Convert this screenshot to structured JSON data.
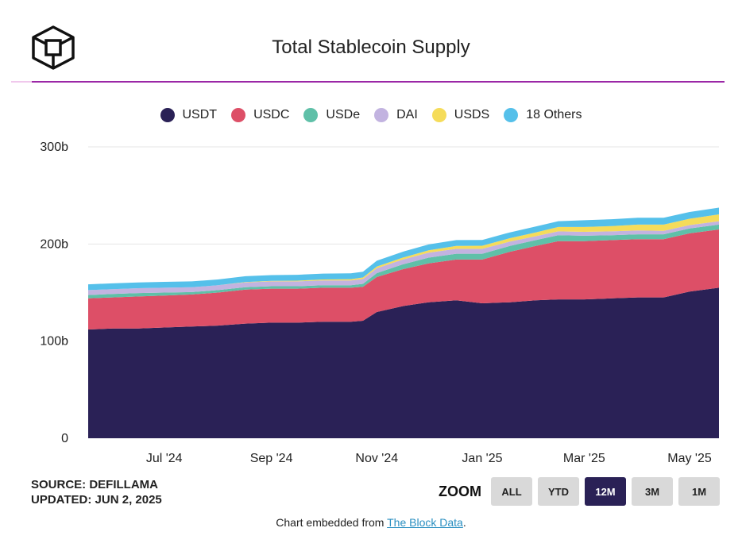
{
  "title": "Total Stablecoin Supply",
  "legend": [
    {
      "label": "USDT",
      "color": "#2a2156"
    },
    {
      "label": "USDC",
      "color": "#dd4f67"
    },
    {
      "label": "USDe",
      "color": "#5fc0a8"
    },
    {
      "label": "DAI",
      "color": "#c2b3e0"
    },
    {
      "label": "USDS",
      "color": "#f5dc5a"
    },
    {
      "label": "18 Others",
      "color": "#55c0ea"
    }
  ],
  "source": {
    "line1": "SOURCE: DEFILLAMA",
    "line2": "UPDATED: JUN 2, 2025"
  },
  "zoom": {
    "label": "ZOOM",
    "buttons": [
      "ALL",
      "YTD",
      "12M",
      "3M",
      "1M"
    ],
    "active": "12M"
  },
  "footer": {
    "prefix": "Chart embedded from ",
    "link": "The Block Data",
    "suffix": "."
  },
  "chart_data": {
    "type": "area",
    "stacked": true,
    "title": "Total Stablecoin Supply",
    "x": [
      "2024-06-02",
      "2024-06-16",
      "2024-07-01",
      "2024-07-16",
      "2024-08-01",
      "2024-08-16",
      "2024-09-01",
      "2024-09-16",
      "2024-10-01",
      "2024-10-16",
      "2024-11-01",
      "2024-11-08",
      "2024-11-16",
      "2024-12-01",
      "2024-12-16",
      "2025-01-01",
      "2025-01-16",
      "2025-02-01",
      "2025-02-16",
      "2025-03-01",
      "2025-03-16",
      "2025-04-01",
      "2025-04-16",
      "2025-05-01",
      "2025-05-16",
      "2025-06-02"
    ],
    "x_ticks": [
      "Jul '24",
      "Sep '24",
      "Nov '24",
      "Jan '25",
      "Mar '25",
      "May '25"
    ],
    "y_ticks": [
      "0",
      "100b",
      "200b",
      "300b"
    ],
    "ylim": [
      0,
      300
    ],
    "unit": "b",
    "grid": true,
    "legend_position": "top",
    "series": [
      {
        "name": "USDT",
        "values": [
          112,
          113,
          113,
          114,
          115,
          116,
          118,
          119,
          119,
          120,
          120,
          121,
          130,
          136,
          140,
          142,
          139,
          140,
          142,
          143,
          143,
          144,
          145,
          145,
          151,
          155
        ]
      },
      {
        "name": "USDC",
        "values": [
          32,
          32,
          33,
          33,
          33,
          34,
          35,
          35,
          35,
          35,
          35,
          35,
          36,
          38,
          40,
          42,
          45,
          52,
          56,
          60,
          60,
          60,
          60,
          60,
          60,
          60
        ]
      },
      {
        "name": "USDe",
        "values": [
          3.5,
          3.5,
          3.5,
          3,
          2.5,
          2.5,
          2.5,
          2.5,
          2.5,
          2.5,
          2.5,
          3,
          4,
          5,
          6,
          6,
          6,
          6,
          6,
          6,
          5.5,
          5,
          5,
          5,
          5,
          5
        ]
      },
      {
        "name": "DAI",
        "values": [
          5,
          5,
          5,
          5,
          5,
          5,
          5,
          5,
          5,
          5,
          5,
          5,
          5,
          5,
          5,
          5,
          5,
          4.5,
          4,
          4,
          4,
          4,
          4,
          3.5,
          3.5,
          3.5
        ]
      },
      {
        "name": "USDS",
        "values": [
          0,
          0,
          0,
          0,
          0,
          0,
          0.3,
          0.5,
          0.8,
          1,
          1.3,
          1.5,
          1.8,
          2,
          2.5,
          3,
          3.2,
          3.5,
          4,
          4.5,
          5,
          5.5,
          6,
          6.5,
          6.5,
          7
        ]
      },
      {
        "name": "18 Others",
        "values": [
          6,
          6,
          6,
          6,
          6,
          6,
          6,
          6,
          6,
          6,
          6,
          6,
          6,
          6,
          6,
          6,
          6,
          6,
          6,
          6,
          7,
          7,
          7,
          7,
          7,
          7
        ]
      }
    ]
  }
}
